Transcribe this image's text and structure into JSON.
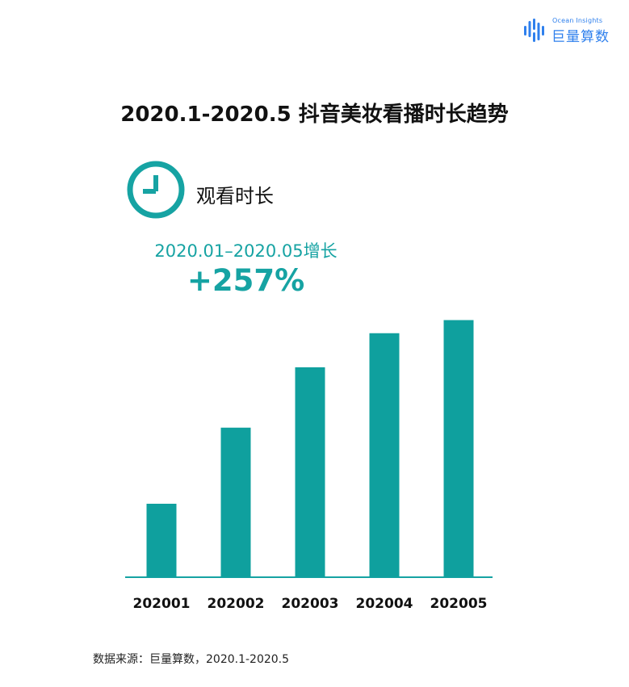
{
  "logo": {
    "text_en": "Ocean Insights",
    "text_cn": "巨量算数",
    "icon": "ocean-insights-logo-icon"
  },
  "title": "2020.1-2020.5 抖音美妆看播时长趋势",
  "metric": {
    "icon": "clock-icon",
    "label": "观看时长"
  },
  "growth": {
    "period": "2020.01–2020.05增长",
    "value": "+257%"
  },
  "source": "数据来源：巨量算数，2020.1-2020.5",
  "colors": {
    "accent": "#16a3a3",
    "bar": "#0fa09e",
    "logo": "#2f80ed",
    "text": "#111111"
  },
  "chart_data": {
    "type": "bar",
    "categories": [
      "202001",
      "202002",
      "202003",
      "202004",
      "202005"
    ],
    "values": [
      28,
      57,
      80,
      93,
      98
    ],
    "ylim": [
      0,
      100
    ],
    "title": "",
    "xlabel": "",
    "ylabel": "",
    "grid": false,
    "legend": false
  }
}
